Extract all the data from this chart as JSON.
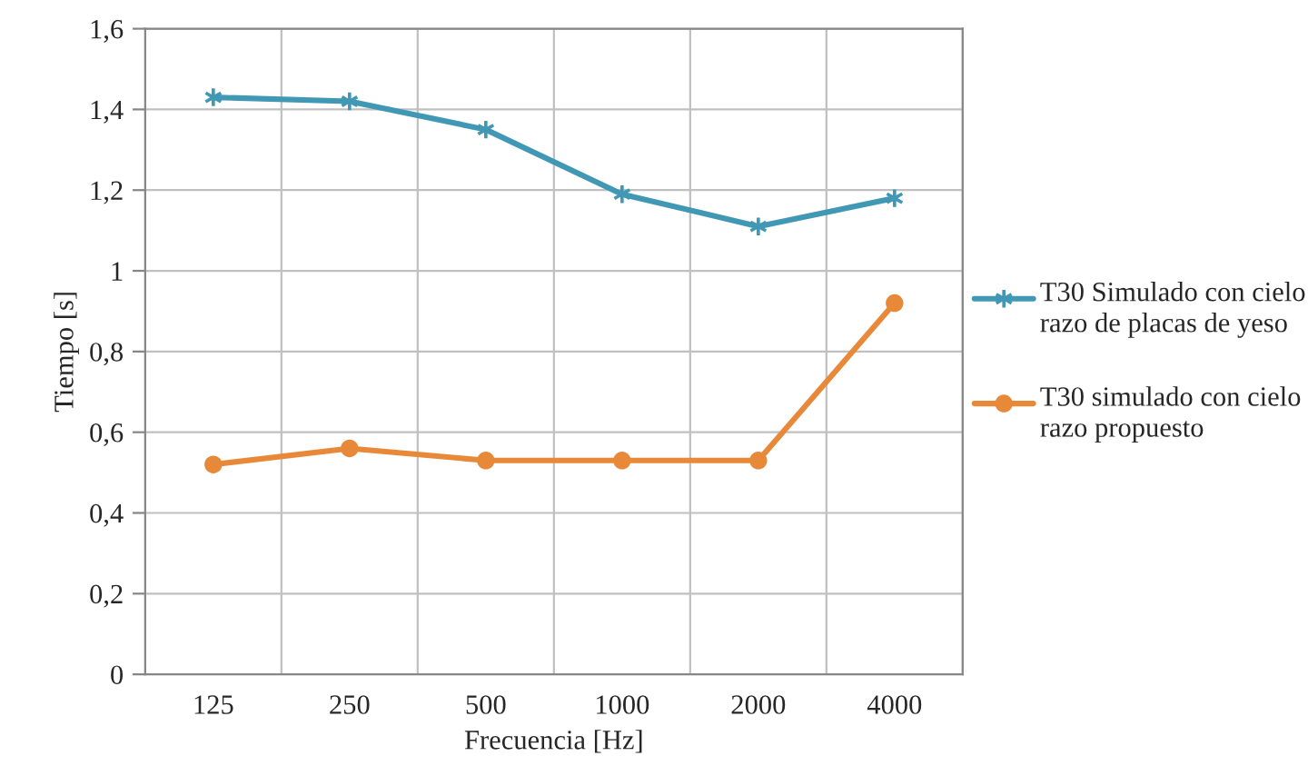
{
  "chart_data": {
    "type": "line",
    "xlabel": "Frecuencia [Hz]",
    "ylabel": "Tiempo [s]",
    "categories": [
      "125",
      "250",
      "500",
      "1000",
      "2000",
      "4000"
    ],
    "series": [
      {
        "name": "T30 Simulado con cielo razo de placas de yeso",
        "color": "#4198b5",
        "marker": "cross",
        "values": [
          1.43,
          1.42,
          1.35,
          1.19,
          1.11,
          1.18
        ]
      },
      {
        "name": "T30 simulado con cielo razo propuesto",
        "color": "#e8893a",
        "marker": "circle",
        "values": [
          0.52,
          0.56,
          0.53,
          0.53,
          0.53,
          0.92
        ]
      }
    ],
    "ylim": [
      0,
      1.6
    ],
    "yticks": [
      {
        "value": 0,
        "label": "0"
      },
      {
        "value": 0.2,
        "label": "0,2"
      },
      {
        "value": 0.4,
        "label": "0,4"
      },
      {
        "value": 0.6,
        "label": "0,6"
      },
      {
        "value": 0.8,
        "label": "0,8"
      },
      {
        "value": 1,
        "label": "1"
      },
      {
        "value": 1.2,
        "label": "1,2"
      },
      {
        "value": 1.4,
        "label": "1,4"
      },
      {
        "value": 1.6,
        "label": "1,6"
      }
    ],
    "grid": true,
    "legend": "right",
    "line_style": "solid"
  }
}
